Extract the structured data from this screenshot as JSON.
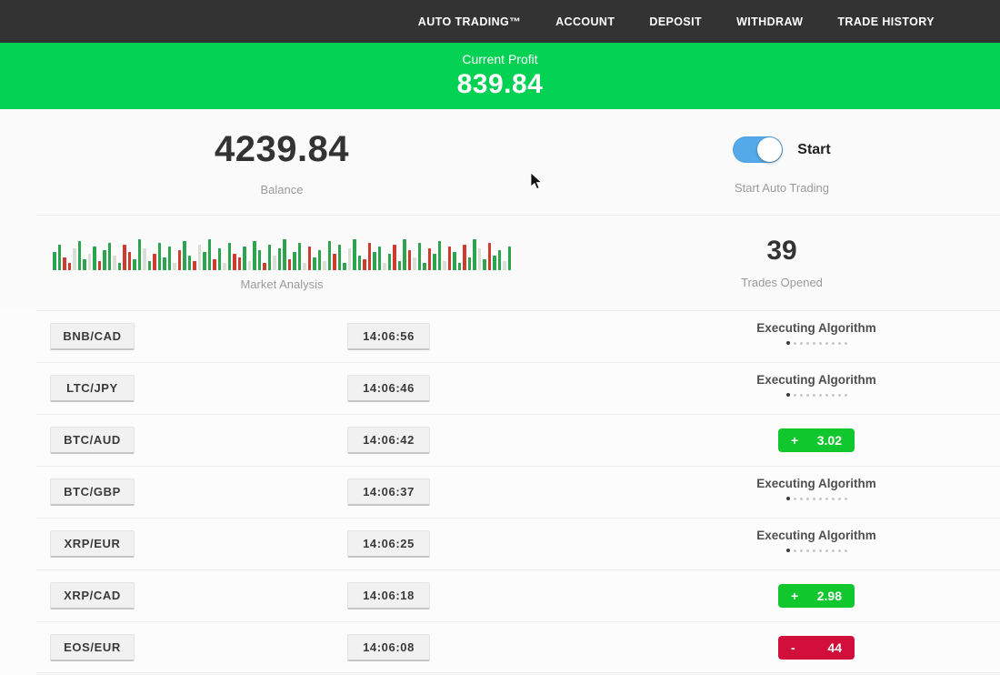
{
  "nav": {
    "items": [
      {
        "label": "AUTO TRADING™"
      },
      {
        "label": "ACCOUNT"
      },
      {
        "label": "DEPOSIT"
      },
      {
        "label": "WITHDRAW"
      },
      {
        "label": "TRADE HISTORY"
      }
    ]
  },
  "profit_banner": {
    "label": "Current Profit",
    "value": "839.84"
  },
  "account": {
    "balance": "4239.84",
    "balance_label": "Balance",
    "toggle_label": "Start",
    "toggle_caption": "Start Auto Trading",
    "toggle_on": true
  },
  "market": {
    "chart_label": "Market Analysis",
    "trades_opened": "39",
    "trades_opened_label": "Trades Opened"
  },
  "chart_data": {
    "type": "bar",
    "title": "Market Analysis",
    "ylim": [
      0,
      40
    ],
    "heights": [
      20,
      28,
      14,
      8,
      24,
      32,
      12,
      18,
      26,
      10,
      22,
      30,
      16,
      8,
      28,
      20,
      12,
      34,
      24,
      10,
      18,
      30,
      14,
      26,
      8,
      22,
      32,
      16,
      10,
      28,
      20,
      34,
      12,
      24,
      8,
      30,
      18,
      14,
      26,
      10,
      32,
      22,
      8,
      28,
      16,
      24,
      34,
      12,
      20,
      30,
      8,
      26,
      14,
      22,
      10,
      32,
      18,
      28,
      8,
      24,
      34,
      16,
      12,
      30,
      20,
      26,
      8,
      18,
      28,
      10,
      34,
      22,
      14,
      30,
      8,
      24,
      18,
      32,
      10,
      26,
      20,
      8,
      28,
      14,
      34,
      24,
      12,
      30,
      16,
      22,
      10,
      26
    ],
    "colors": [
      "g",
      "g",
      "r",
      "r",
      "l",
      "g",
      "g",
      "l",
      "g",
      "r",
      "g",
      "g",
      "l",
      "g",
      "r",
      "r",
      "g",
      "g",
      "l",
      "g",
      "r",
      "g",
      "g",
      "g",
      "l",
      "r",
      "g",
      "g",
      "r",
      "l",
      "g",
      "g",
      "r",
      "g",
      "l",
      "g",
      "r",
      "r",
      "g",
      "l",
      "g",
      "g",
      "r",
      "g",
      "l",
      "g",
      "g",
      "r",
      "g",
      "g",
      "l",
      "r",
      "g",
      "g",
      "l",
      "g",
      "r",
      "g",
      "g",
      "l",
      "g",
      "g",
      "r",
      "r",
      "g",
      "g",
      "l",
      "g",
      "r",
      "g",
      "g",
      "r",
      "l",
      "g",
      "g",
      "r",
      "g",
      "g",
      "l",
      "r",
      "g",
      "g",
      "r",
      "g",
      "g",
      "l",
      "g",
      "r",
      "g",
      "g",
      "l",
      "g"
    ]
  },
  "trades": {
    "executing_label": "Executing Algorithm",
    "dots_total": 10,
    "dots_active": 1,
    "rows": [
      {
        "pair": "BNB/CAD",
        "time": "14:06:56",
        "status": "executing",
        "sign": "",
        "value": ""
      },
      {
        "pair": "LTC/JPY",
        "time": "14:06:46",
        "status": "executing",
        "sign": "",
        "value": ""
      },
      {
        "pair": "BTC/AUD",
        "time": "14:06:42",
        "status": "profit",
        "sign": "+",
        "value": "3.02"
      },
      {
        "pair": "BTC/GBP",
        "time": "14:06:37",
        "status": "executing",
        "sign": "",
        "value": ""
      },
      {
        "pair": "XRP/EUR",
        "time": "14:06:25",
        "status": "executing",
        "sign": "",
        "value": ""
      },
      {
        "pair": "XRP/CAD",
        "time": "14:06:18",
        "status": "profit",
        "sign": "+",
        "value": "2.98"
      },
      {
        "pair": "EOS/EUR",
        "time": "14:06:08",
        "status": "loss",
        "sign": "-",
        "value": "44"
      }
    ]
  },
  "colors": {
    "nav_bg": "#333333",
    "banner_green": "#03d154",
    "toggle_blue": "#55abe9",
    "badge_green": "#11c72e",
    "badge_red": "#d20e3b",
    "chart_green": "#2da44e",
    "chart_red": "#cf3a2e"
  }
}
